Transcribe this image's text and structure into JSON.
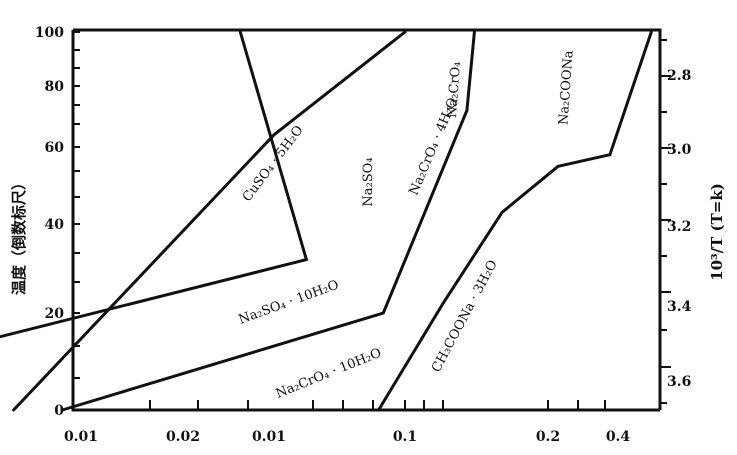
{
  "chart_data": {
    "type": "line",
    "title": "",
    "xscale": "log",
    "x_tick_labels": [
      "0.01",
      "0.02",
      "0.01",
      "0.1",
      "0.2",
      "0.4"
    ],
    "y_left_label": "温度（倒数标尺）",
    "y_left_ticks": [
      "0",
      "20",
      "40",
      "60",
      "80",
      "100"
    ],
    "y_right_label": "10³/T  (T=k)",
    "y_right_ticks": [
      "2.8",
      "3.0",
      "3.2",
      "3.4",
      "3.6"
    ],
    "series": [
      {
        "name": "CuSO₄ · 5H₂O",
        "points": [
          [
            0.015,
            0
          ],
          [
            0.053,
            64
          ],
          [
            0.1,
            100
          ]
        ]
      },
      {
        "name": "Na₂SO₄ · 10H₂O",
        "points": [
          [
            0.006,
            6
          ],
          [
            0.062,
            32
          ]
        ]
      },
      {
        "name": "Na₂SO₄",
        "points": [
          [
            0.045,
            100
          ],
          [
            0.062,
            32
          ]
        ]
      },
      {
        "name": "Na₂CrO₄ · 10H₂O",
        "points": [
          [
            0.019,
            0
          ],
          [
            0.09,
            20
          ]
        ]
      },
      {
        "name": "Na₂CrO₄ · 4H₂O",
        "points": [
          [
            0.09,
            20
          ],
          [
            0.135,
            72
          ]
        ]
      },
      {
        "name": "Na₂CrO₄",
        "points": [
          [
            0.135,
            72
          ],
          [
            0.14,
            100
          ]
        ]
      },
      {
        "name": "CH₃COONa · 3H₂O",
        "points": [
          [
            0.088,
            0
          ],
          [
            0.12,
            22
          ],
          [
            0.16,
            43
          ],
          [
            0.21,
            55
          ],
          [
            0.27,
            58
          ]
        ]
      },
      {
        "name": "Na₂COONa",
        "points": [
          [
            0.27,
            58
          ],
          [
            0.33,
            100
          ]
        ]
      }
    ],
    "annotations": [
      "CuSO₄ · 5H₂O",
      "Na₂SO₄",
      "Na₂SO₄ · 10H₂O",
      "Na₂CrO₄ · 10H₂O",
      "Na₂CrO₄ · 4H₂O",
      "Na₂CrO₄",
      "CH₃COONa · 3H₂O",
      "Na₂COONa"
    ]
  }
}
